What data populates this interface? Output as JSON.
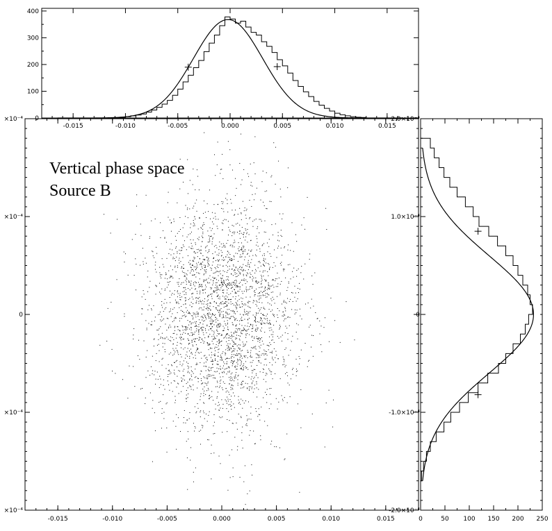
{
  "chart_data": [
    {
      "id": "top-histogram",
      "type": "histogram",
      "xlim": [
        -0.018,
        0.018
      ],
      "ylim": [
        0,
        410
      ],
      "x_ticks": [
        -0.015,
        -0.01,
        -0.005,
        0.0,
        0.005,
        0.01,
        0.015
      ],
      "x_tick_labels": [
        "-0.015",
        "-0.010",
        "-0.005",
        "0.000",
        "0.005",
        "0.010",
        "0.015"
      ],
      "y_ticks": [
        0,
        100,
        200,
        300,
        400
      ],
      "y_tick_labels": [
        "0",
        "100",
        "200",
        "300",
        "400"
      ],
      "bin_width": 0.0005,
      "bins_start": -0.0115,
      "counts": [
        1,
        1,
        3,
        5,
        8,
        11,
        15,
        22,
        30,
        40,
        52,
        66,
        85,
        108,
        135,
        160,
        188,
        215,
        248,
        280,
        310,
        345,
        378,
        370,
        355,
        362,
        340,
        320,
        310,
        285,
        268,
        245,
        218,
        195,
        168,
        140,
        118,
        98,
        80,
        62,
        48,
        36,
        26,
        18,
        12,
        8,
        5,
        3,
        2
      ],
      "gaussian_fit": {
        "amplitude": 368,
        "mean": -0.0002,
        "sigma": 0.0033
      },
      "markers": [
        {
          "x": -0.004,
          "y": 190
        },
        {
          "x": 0.0045,
          "y": 192
        }
      ]
    },
    {
      "id": "scatter",
      "type": "scatter",
      "xlim": [
        -0.018,
        0.018
      ],
      "ylim": [
        -0.0002,
        0.0002
      ],
      "x_ticks": [
        -0.015,
        -0.01,
        -0.005,
        0.0,
        0.005,
        0.01,
        0.015
      ],
      "x_tick_labels": [
        "-0.015",
        "-0.010",
        "-0.005",
        "0.000",
        "0.005",
        "0.010",
        "0.015"
      ],
      "y_ticks": [
        -0.0002,
        -0.0001,
        0.0,
        0.0001,
        0.0002
      ],
      "y_tick_labels": [
        "×10⁻⁴",
        "×10⁻⁴",
        "0",
        "×10⁻⁴",
        "×10⁻⁴"
      ],
      "distribution": {
        "x_mean": 0.0,
        "x_sigma": 0.0035,
        "y_mean": 0.0,
        "y_sigma": 6e-05,
        "n_points": 3000
      },
      "annotation": [
        "Vertical phase space",
        "Source B"
      ]
    },
    {
      "id": "right-histogram",
      "type": "histogram",
      "orientation": "horizontal",
      "xlim": [
        0,
        250
      ],
      "ylim": [
        -0.0002,
        0.0002
      ],
      "x_ticks": [
        0,
        50,
        100,
        150,
        200,
        250
      ],
      "x_tick_labels": [
        "0",
        "50",
        "100",
        "150",
        "200",
        "250"
      ],
      "x_minor_ticks": [
        25,
        75,
        125,
        175,
        225
      ],
      "y_ticks": [
        -0.0002,
        -0.0001,
        0.0,
        0.0001,
        0.0002
      ],
      "y_tick_labels": [
        "-2.0×10⁻⁴",
        "-1.0×10⁻⁴",
        "0",
        "1.0×10⁻⁴",
        "2.0×10⁻⁴"
      ],
      "bin_width": 1e-05,
      "bins_start": -0.00017,
      "counts": [
        2,
        6,
        12,
        20,
        32,
        48,
        62,
        80,
        98,
        118,
        138,
        160,
        175,
        190,
        205,
        215,
        222,
        230,
        225,
        220,
        210,
        200,
        190,
        175,
        158,
        140,
        120,
        108,
        92,
        75,
        60,
        48,
        38,
        28,
        20
      ],
      "gaussian_fit": {
        "amplitude": 232,
        "mean": 0.0,
        "sigma": 6e-05
      },
      "markers": [
        {
          "x": 118,
          "y": 8.5e-05
        },
        {
          "x": 118,
          "y": -8.2e-05
        }
      ]
    }
  ]
}
